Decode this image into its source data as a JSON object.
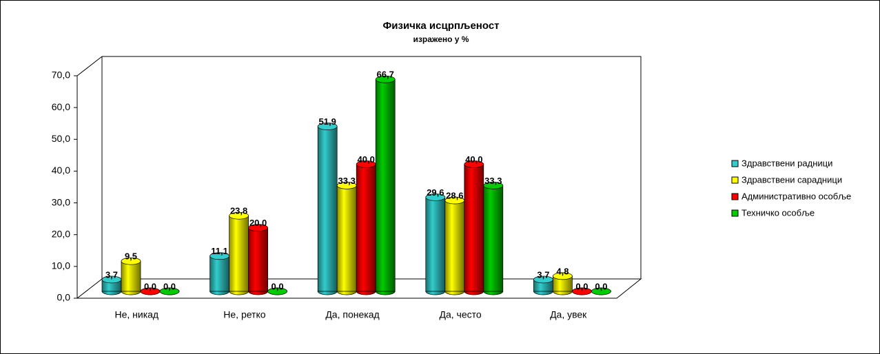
{
  "chart_data": {
    "type": "bar3d",
    "title": "Физичка исцрпљеност",
    "subtitle": "изражено у %",
    "categories": [
      "Не, никад",
      "Не, ретко",
      "Да, понекад",
      "Да, често",
      "Да, увек"
    ],
    "series": [
      {
        "name": "Здравствени радници",
        "color": "#33cccc",
        "values": [
          3.7,
          11.1,
          51.9,
          29.6,
          3.7
        ],
        "value_labels": [
          "3,7",
          "11,1",
          "51,9",
          "29,6",
          "3,7"
        ]
      },
      {
        "name": "Здравствени сарадници",
        "color": "#ffff00",
        "values": [
          9.5,
          23.8,
          33.3,
          28.6,
          4.8
        ],
        "value_labels": [
          "9,5",
          "23,8",
          "33,3",
          "28,6",
          "4,8"
        ]
      },
      {
        "name": "Административно особље",
        "color": "#ff0000",
        "values": [
          0.0,
          20.0,
          40.0,
          40.0,
          0.0
        ],
        "value_labels": [
          "0,0",
          "20,0",
          "40,0",
          "40,0",
          "0,0"
        ]
      },
      {
        "name": "Техничко особље",
        "color": "#00cc00",
        "values": [
          0.0,
          0.0,
          66.7,
          33.3,
          0.0
        ],
        "value_labels": [
          "0,0",
          "0,0",
          "66,7",
          "33,3",
          "0,0"
        ]
      }
    ],
    "ylim": [
      0,
      70
    ],
    "yticks": [
      {
        "value": 0,
        "label": "0,0"
      },
      {
        "value": 10,
        "label": "10,0"
      },
      {
        "value": 20,
        "label": "20,0"
      },
      {
        "value": 30,
        "label": "30,0"
      },
      {
        "value": 40,
        "label": "40,0"
      },
      {
        "value": 50,
        "label": "50,0"
      },
      {
        "value": 60,
        "label": "60,0"
      },
      {
        "value": 70,
        "label": "70,0"
      }
    ],
    "legend": "right"
  }
}
